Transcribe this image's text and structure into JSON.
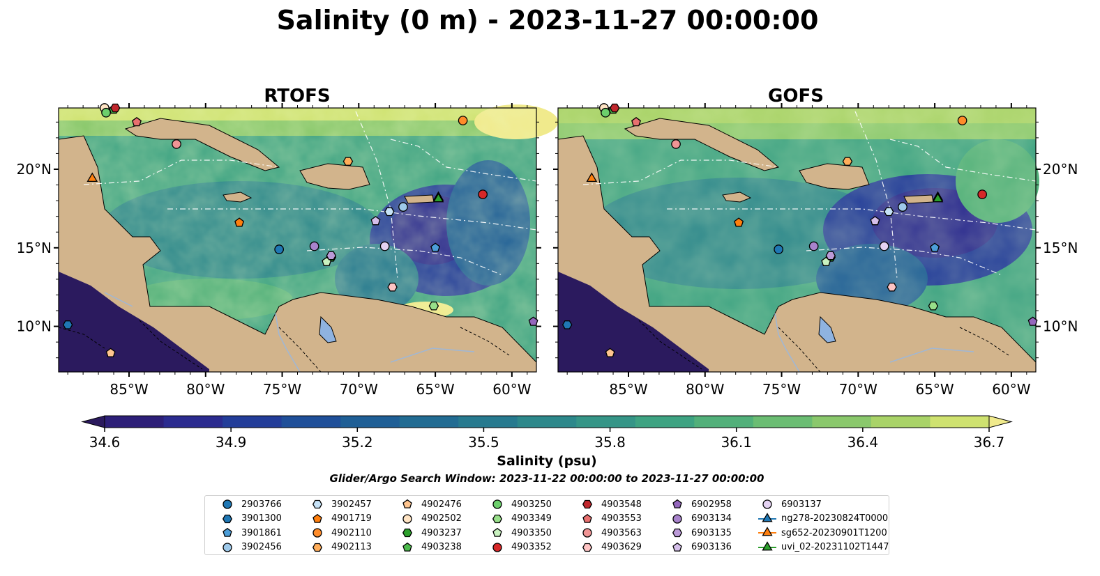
{
  "title": "Salinity (0 m) - 2023-11-27 00:00:00",
  "panels": [
    {
      "name": "RTOFS"
    },
    {
      "name": "GOFS"
    }
  ],
  "chart_data": {
    "type": "heatmap",
    "title": "Salinity (0 m) - 2023-11-27 00:00:00",
    "x_ticks": [
      "85°W",
      "80°W",
      "75°W",
      "70°W",
      "65°W",
      "60°W"
    ],
    "x_tick_values": [
      -85,
      -80,
      -75,
      -70,
      -65,
      -60
    ],
    "y_ticks": [
      "20°N",
      "15°N",
      "10°N"
    ],
    "y_tick_values": [
      20,
      15,
      10
    ],
    "xlim": [
      -89.6,
      -58.4
    ],
    "ylim": [
      7.1,
      23.9
    ],
    "colorbar": {
      "label": "Salinity (psu)",
      "ticks": [
        "34.6",
        "34.9",
        "35.2",
        "35.5",
        "35.8",
        "36.1",
        "36.4",
        "36.7"
      ],
      "tick_values": [
        34.6,
        34.9,
        35.2,
        35.5,
        35.8,
        36.1,
        36.4,
        36.7
      ],
      "range": [
        34.6,
        36.7
      ],
      "extend": "both",
      "colors": [
        "#2b1a5e",
        "#2d1f78",
        "#2b2b8f",
        "#233d99",
        "#1f4f99",
        "#1f5f96",
        "#226c93",
        "#277a8f",
        "#2d888b",
        "#359587",
        "#3ea382",
        "#52b07a",
        "#6bbd73",
        "#8ac86c",
        "#a9d368",
        "#cfe270",
        "#f0ea8c"
      ]
    },
    "search_window": "Glider/Argo Search Window: 2023-11-22 00:00:00 to 2023-11-27 00:00:00",
    "land_color": "#d2b48c",
    "platforms": [
      {
        "id": "2903766",
        "marker": "circle",
        "color": "#1f77b4",
        "lon": -75.2,
        "lat": 14.9
      },
      {
        "id": "3901300",
        "marker": "hexagon",
        "color": "#1f77b4",
        "lon": -89.0,
        "lat": 10.1
      },
      {
        "id": "3901861",
        "marker": "pentagon",
        "color": "#4c9ed9",
        "lon": -65.0,
        "lat": 15.0
      },
      {
        "id": "3902456",
        "marker": "circle",
        "color": "#9ec9ea",
        "lon": -67.1,
        "lat": 17.6
      },
      {
        "id": "3902457",
        "marker": "hexagon",
        "color": "#c6e2f7",
        "lon": -68.0,
        "lat": 17.3
      },
      {
        "id": "4901719",
        "marker": "pentagon",
        "color": "#ff7f0e",
        "lon": -77.8,
        "lat": 16.6
      },
      {
        "id": "4902110",
        "marker": "circle",
        "color": "#ff8c2a",
        "lon": -63.2,
        "lat": 23.1
      },
      {
        "id": "4902113",
        "marker": "hexagon",
        "color": "#ffad5a",
        "lon": -70.7,
        "lat": 20.5
      },
      {
        "id": "4902476",
        "marker": "pentagon",
        "color": "#ffc58f",
        "lon": -86.2,
        "lat": 8.3
      },
      {
        "id": "4902502",
        "marker": "circle",
        "color": "#ffe4c4",
        "lon": -86.6,
        "lat": 24.0
      },
      {
        "id": "4903237",
        "marker": "hexagon",
        "color": "#2ca02c",
        "lon": -71.8,
        "lat": 14.4
      },
      {
        "id": "4903238",
        "marker": "pentagon",
        "color": "#4dbb4d",
        "lon": -86.0,
        "lat": 23.8
      },
      {
        "id": "4903250",
        "marker": "circle",
        "color": "#6ccf6c",
        "lon": -86.5,
        "lat": 23.6
      },
      {
        "id": "4903349",
        "marker": "hexagon",
        "color": "#98df8a",
        "lon": -65.1,
        "lat": 11.3
      },
      {
        "id": "4903350",
        "marker": "pentagon",
        "color": "#c9f2c0",
        "lon": -72.1,
        "lat": 14.1
      },
      {
        "id": "4903352",
        "marker": "circle",
        "color": "#d62728",
        "lon": -61.9,
        "lat": 18.4
      },
      {
        "id": "4903548",
        "marker": "hexagon",
        "color": "#c0272d",
        "lon": -85.9,
        "lat": 24.0
      },
      {
        "id": "4903553",
        "marker": "pentagon",
        "color": "#e8706f",
        "lon": -84.5,
        "lat": 23.0
      },
      {
        "id": "4903563",
        "marker": "circle",
        "color": "#f09595",
        "lon": -81.9,
        "lat": 21.6
      },
      {
        "id": "4903629",
        "marker": "hexagon",
        "color": "#ffc4c4",
        "lon": -67.8,
        "lat": 12.5
      },
      {
        "id": "6902958",
        "marker": "pentagon",
        "color": "#9467bd",
        "lon": -58.6,
        "lat": 10.3
      },
      {
        "id": "6903134",
        "marker": "circle",
        "color": "#a883cc",
        "lon": -72.9,
        "lat": 15.1
      },
      {
        "id": "6903135",
        "marker": "hexagon",
        "color": "#bb9ad8",
        "lon": -71.8,
        "lat": 14.5
      },
      {
        "id": "6903136",
        "marker": "pentagon",
        "color": "#d5bfea",
        "lon": -68.9,
        "lat": 16.7
      },
      {
        "id": "6903137",
        "marker": "circle",
        "color": "#e4d2f2",
        "lon": -68.3,
        "lat": 15.1
      },
      {
        "id": "ng278-20230824T0000",
        "marker": "triangle",
        "color": "#1f77b4",
        "lon": -64.8,
        "lat": 18.2
      },
      {
        "id": "sg652-20230901T1200",
        "marker": "triangle",
        "color": "#ff7f0e",
        "lon": -87.4,
        "lat": 19.4
      },
      {
        "id": "uvi_02-20231102T1447",
        "marker": "triangle",
        "color": "#2ca02c",
        "lon": -64.8,
        "lat": 18.1
      }
    ]
  }
}
